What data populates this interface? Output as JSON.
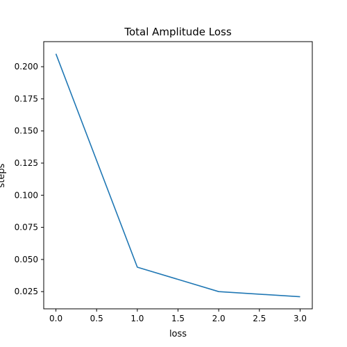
{
  "chart_data": {
    "type": "line",
    "title": "Total Amplitude Loss",
    "xlabel": "loss",
    "ylabel": "steps",
    "xlim": [
      -0.15,
      3.15
    ],
    "ylim": [
      0.0116,
      0.2195
    ],
    "x_ticks": [
      0.0,
      0.5,
      1.0,
      1.5,
      2.0,
      2.5,
      3.0
    ],
    "x_tick_labels": [
      "0.0",
      "0.5",
      "1.0",
      "1.5",
      "2.0",
      "2.5",
      "3.0"
    ],
    "y_ticks": [
      0.025,
      0.05,
      0.075,
      0.1,
      0.125,
      0.15,
      0.175,
      0.2
    ],
    "y_tick_labels": [
      "0.025",
      "0.050",
      "0.075",
      "0.100",
      "0.125",
      "0.150",
      "0.175",
      "0.200"
    ],
    "grid": false,
    "series": [
      {
        "color": "#1f77b4",
        "x": [
          0,
          1,
          2,
          3
        ],
        "y": [
          0.21,
          0.044,
          0.025,
          0.021
        ]
      }
    ]
  }
}
